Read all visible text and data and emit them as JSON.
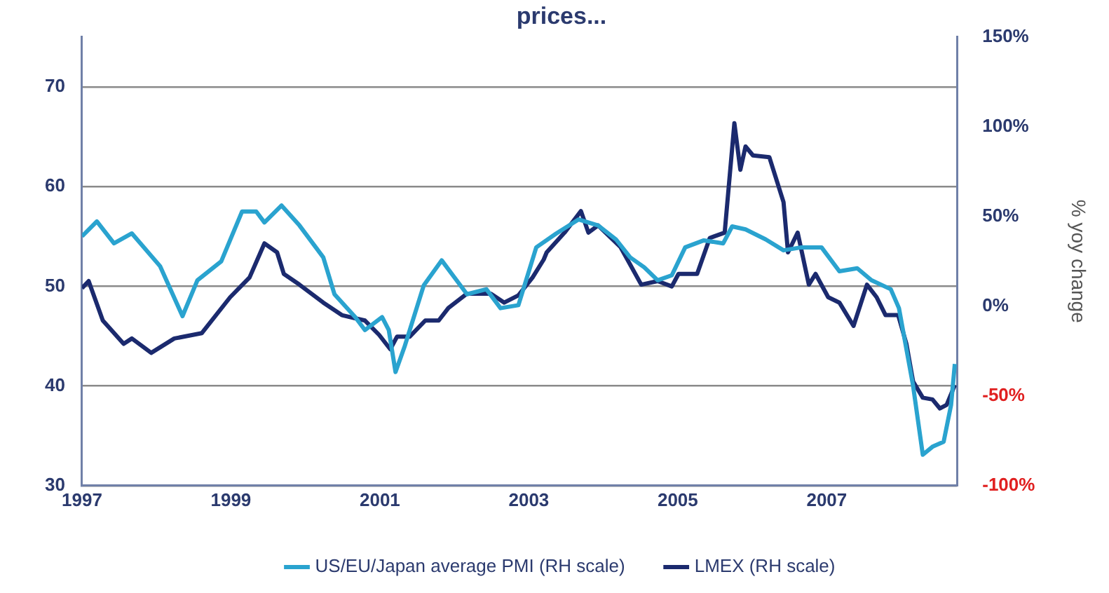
{
  "chart_data": {
    "type": "line",
    "title": "prices...",
    "y2label": "% yoy change",
    "xlim": [
      1997,
      2008.75
    ],
    "xticks": [
      1997,
      1999,
      2001,
      2003,
      2005,
      2007
    ],
    "ylim": [
      30,
      75
    ],
    "yticks": [
      30,
      40,
      50,
      60,
      70
    ],
    "y2lim": [
      -100,
      150
    ],
    "y2ticks": [
      {
        "value": -100,
        "label": "-100%"
      },
      {
        "value": -50,
        "label": "-50%"
      },
      {
        "value": 0,
        "label": "0%"
      },
      {
        "value": 50,
        "label": "50%"
      },
      {
        "value": 100,
        "label": "100%"
      },
      {
        "value": 150,
        "label": "150%"
      }
    ],
    "grid": "y",
    "legend": "bottom",
    "marker": "none",
    "line_style": "solid",
    "series": [
      {
        "name": "US/EU/Japan average PMI (RH scale)",
        "color": "#2aa3cf",
        "x": [
          1997.0,
          1997.2,
          1997.43,
          1997.67,
          1998.05,
          1998.35,
          1998.55,
          1998.87,
          1999.15,
          1999.34,
          1999.45,
          1999.68,
          1999.92,
          2000.24,
          2000.39,
          2000.67,
          2000.8,
          2001.03,
          2001.12,
          2001.21,
          2001.33,
          2001.59,
          2001.83,
          2001.98,
          2002.17,
          2002.43,
          2002.62,
          2002.86,
          2003.1,
          2003.37,
          2003.67,
          2003.93,
          2004.17,
          2004.36,
          2004.55,
          2004.73,
          2004.92,
          2005.1,
          2005.35,
          2005.61,
          2005.73,
          2005.91,
          2006.18,
          2006.42,
          2006.66,
          2006.93,
          2007.17,
          2007.41,
          2007.6,
          2007.86,
          2007.97,
          2008.16,
          2008.29,
          2008.42,
          2008.57,
          2008.67,
          2008.72
        ],
        "values": [
          55.0,
          56.5,
          54.3,
          55.3,
          52,
          47,
          50.6,
          52.5,
          57.5,
          57.5,
          56.4,
          58.1,
          56.1,
          52.9,
          49.2,
          46.9,
          45.6,
          46.9,
          45.6,
          41.4,
          43.9,
          50.1,
          52.6,
          51.1,
          49.2,
          49.7,
          47.8,
          48.1,
          53.9,
          55.3,
          56.7,
          56.1,
          54.7,
          52.9,
          51.9,
          50.6,
          51.1,
          53.9,
          54.6,
          54.3,
          56.0,
          55.7,
          54.7,
          53.6,
          53.9,
          53.9,
          51.5,
          51.8,
          50.6,
          49.7,
          47.8,
          40,
          33.1,
          33.9,
          34.4,
          38.1,
          42.2
        ]
      },
      {
        "name": "LMEX (RH scale)",
        "color": "#1b2a6e",
        "axis": "y2",
        "x": [
          1997.0,
          1997.09,
          1997.28,
          1997.56,
          1997.67,
          1997.93,
          1998.24,
          1998.61,
          1998.99,
          1999.25,
          1999.45,
          1999.62,
          1999.71,
          1999.92,
          2000.24,
          2000.49,
          2000.8,
          2000.99,
          2001.14,
          2001.23,
          2001.4,
          2001.61,
          2001.79,
          2001.92,
          2002.17,
          2002.49,
          2002.67,
          2002.86,
          2003.05,
          2003.2,
          2003.24,
          2003.48,
          2003.7,
          2003.8,
          2003.93,
          2004.23,
          2004.51,
          2004.73,
          2004.92,
          2005.01,
          2005.26,
          2005.43,
          2005.63,
          2005.76,
          2005.84,
          2005.91,
          2006.01,
          2006.23,
          2006.42,
          2006.48,
          2006.61,
          2006.76,
          2006.85,
          2007.02,
          2007.17,
          2007.36,
          2007.54,
          2007.67,
          2007.79,
          2007.96,
          2008.07,
          2008.16,
          2008.29,
          2008.42,
          2008.52,
          2008.61,
          2008.72
        ],
        "values": [
          10,
          14,
          -8,
          -21,
          -18,
          -26,
          -18,
          -15,
          5,
          16,
          35,
          30,
          18,
          12,
          2,
          -5,
          -8,
          -16,
          -24,
          -17,
          -17,
          -8,
          -8,
          -1,
          7,
          7,
          2,
          6,
          16,
          26,
          30,
          41,
          53,
          41,
          45,
          33,
          12,
          14,
          11,
          18,
          18,
          38,
          41,
          102,
          76,
          89,
          84,
          83,
          58,
          30,
          41,
          12,
          18,
          5,
          2,
          -11,
          12,
          5,
          -5,
          -5,
          -21,
          -42,
          -51,
          -52,
          -57,
          -55,
          -44
        ]
      }
    ]
  }
}
